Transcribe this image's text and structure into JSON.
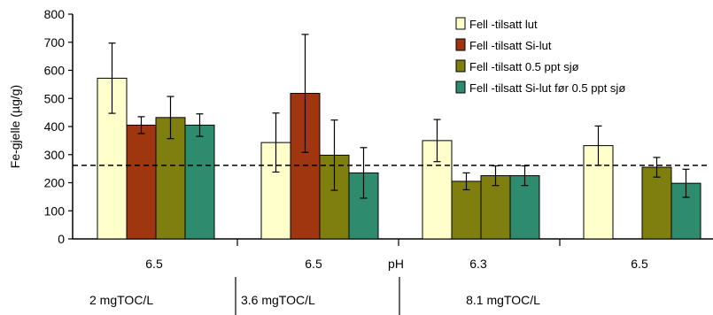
{
  "chart_data": {
    "type": "bar",
    "ylabel": "Fe-gjelle (µg/g)",
    "ylim": [
      0,
      800
    ],
    "yticks": [
      0,
      100,
      200,
      300,
      400,
      500,
      600,
      700,
      800
    ],
    "grid": false,
    "legend_position": "top-right",
    "reference_line": {
      "y": 262,
      "style": "dashed"
    },
    "ph_label": "pH",
    "categories": [
      "6.5",
      "6.5",
      "6.3",
      "6.5"
    ],
    "groups": [
      {
        "label": "2 mgTOC/L"
      },
      {
        "label": "3.6 mgTOC/L"
      },
      {
        "label": "8.1 mgTOC/L"
      }
    ],
    "series": [
      {
        "name": "Fell -tilsatt lut",
        "color": "#ffffcc",
        "values": [
          572,
          343,
          350,
          332
        ],
        "errors": [
          125,
          105,
          75,
          70
        ]
      },
      {
        "name": "Fell -tilsatt Si-lut",
        "color": "#a0360f",
        "values": [
          405,
          518,
          null,
          null
        ],
        "errors": [
          30,
          210,
          null,
          null
        ]
      },
      {
        "name": "Fell -tilsatt 0.5 ppt sjø",
        "color": "#7f7f10",
        "values": [
          432,
          298,
          205,
          255
        ],
        "errors": [
          75,
          125,
          30,
          35
        ]
      },
      {
        "name": "Fell -tilsatt Si-lut før 0.5 ppt sjø",
        "color": "#2e8b6e",
        "values": [
          405,
          235,
          225,
          198
        ],
        "errors": [
          40,
          90,
          35,
          50
        ]
      }
    ],
    "extra_bars": [
      {
        "category_index": 2,
        "series_index": 2,
        "value": 225,
        "error": 35
      }
    ]
  }
}
